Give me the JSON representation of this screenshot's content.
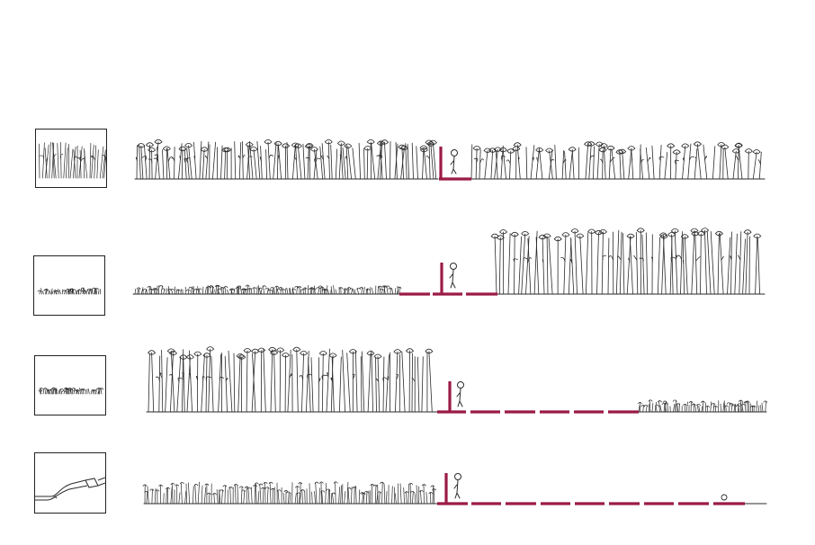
{
  "colors": {
    "ink": "#2a2a2a",
    "accent": "#9b1b45",
    "background": "#ffffff"
  },
  "icons": {
    "person": "standing-person-icon",
    "culvert": "pipe-culvert-icon"
  },
  "rows": [
    {
      "id": "row-1",
      "left_vegetation": "tall",
      "right_vegetation": "tall",
      "path_style": "single-step"
    },
    {
      "id": "row-2",
      "left_vegetation": "short",
      "right_vegetation": "tall",
      "path_style": "split-step"
    },
    {
      "id": "row-3",
      "left_vegetation": "tall",
      "right_vegetation": "short",
      "path_style": "dashed-long"
    },
    {
      "id": "row-4",
      "left_vegetation": "medium",
      "right_vegetation": "none",
      "path_style": "dashed-long"
    }
  ]
}
